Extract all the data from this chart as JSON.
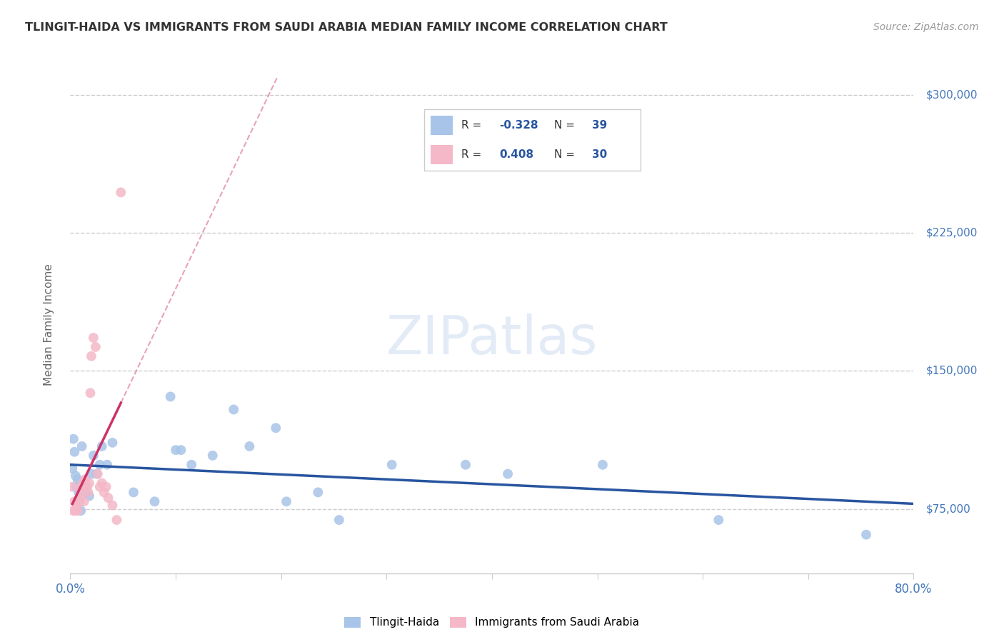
{
  "title": "TLINGIT-HAIDA VS IMMIGRANTS FROM SAUDI ARABIA MEDIAN FAMILY INCOME CORRELATION CHART",
  "source": "Source: ZipAtlas.com",
  "ylabel": "Median Family Income",
  "watermark": "ZIPatlas",
  "legend_label1": "Tlingit-Haida",
  "legend_label2": "Immigrants from Saudi Arabia",
  "R1": -0.328,
  "N1": 39,
  "R2": 0.408,
  "N2": 30,
  "color1": "#a8c4e8",
  "color2": "#f4b8c8",
  "trend1_color": "#2855a0",
  "trend2_color": "#cc3366",
  "xmin": 0.0,
  "xmax": 0.8,
  "ymin": 40000,
  "ymax": 310000,
  "yticks": [
    75000,
    150000,
    225000,
    300000
  ],
  "blue_x": [
    0.002,
    0.003,
    0.004,
    0.005,
    0.006,
    0.007,
    0.008,
    0.009,
    0.01,
    0.011,
    0.012,
    0.015,
    0.018,
    0.02,
    0.022,
    0.025,
    0.028,
    0.03,
    0.035,
    0.04,
    0.06,
    0.08,
    0.095,
    0.1,
    0.105,
    0.115,
    0.135,
    0.155,
    0.17,
    0.195,
    0.205,
    0.235,
    0.255,
    0.305,
    0.375,
    0.415,
    0.505,
    0.615,
    0.755
  ],
  "blue_y": [
    97000,
    113000,
    106000,
    93000,
    87000,
    91000,
    84000,
    79000,
    74000,
    109000,
    89000,
    84000,
    82000,
    94000,
    104000,
    94000,
    99000,
    109000,
    99000,
    111000,
    84000,
    79000,
    136000,
    107000,
    107000,
    99000,
    104000,
    129000,
    109000,
    119000,
    79000,
    84000,
    69000,
    99000,
    99000,
    94000,
    99000,
    69000,
    61000
  ],
  "pink_x": [
    0.002,
    0.003,
    0.004,
    0.005,
    0.006,
    0.007,
    0.008,
    0.009,
    0.01,
    0.011,
    0.012,
    0.013,
    0.014,
    0.015,
    0.016,
    0.017,
    0.018,
    0.019,
    0.02,
    0.022,
    0.024,
    0.026,
    0.028,
    0.03,
    0.032,
    0.034,
    0.036,
    0.04,
    0.044,
    0.048
  ],
  "pink_y": [
    87000,
    74000,
    79000,
    74000,
    77000,
    74000,
    79000,
    81000,
    84000,
    87000,
    89000,
    79000,
    91000,
    87000,
    87000,
    84000,
    89000,
    138000,
    158000,
    168000,
    163000,
    94000,
    87000,
    89000,
    84000,
    87000,
    81000,
    77000,
    69000,
    247000
  ]
}
